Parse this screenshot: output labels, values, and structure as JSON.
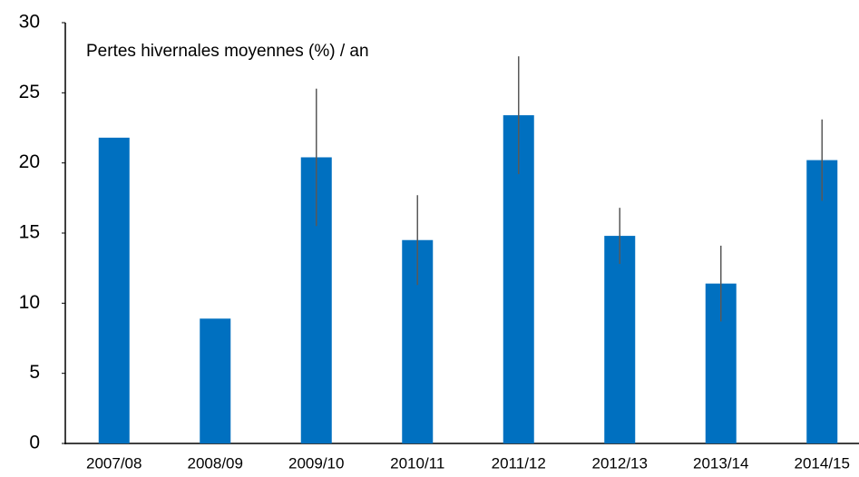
{
  "chart_data": {
    "type": "bar",
    "title": "Pertes hivernales moyennes (%) / an",
    "categories": [
      "2007/08",
      "2008/09",
      "2009/10",
      "2010/11",
      "2011/12",
      "2012/13",
      "2013/14",
      "2014/15"
    ],
    "values": [
      21.8,
      8.9,
      20.4,
      14.5,
      23.4,
      14.8,
      11.4,
      20.2
    ],
    "errors": [
      null,
      null,
      4.9,
      3.2,
      4.2,
      2.0,
      2.7,
      2.9
    ],
    "color": "#0070c0",
    "error_color": "#595959",
    "ylim": [
      0,
      30
    ],
    "yticks": [
      0,
      5,
      10,
      15,
      20,
      25,
      30
    ],
    "grid": false
  }
}
